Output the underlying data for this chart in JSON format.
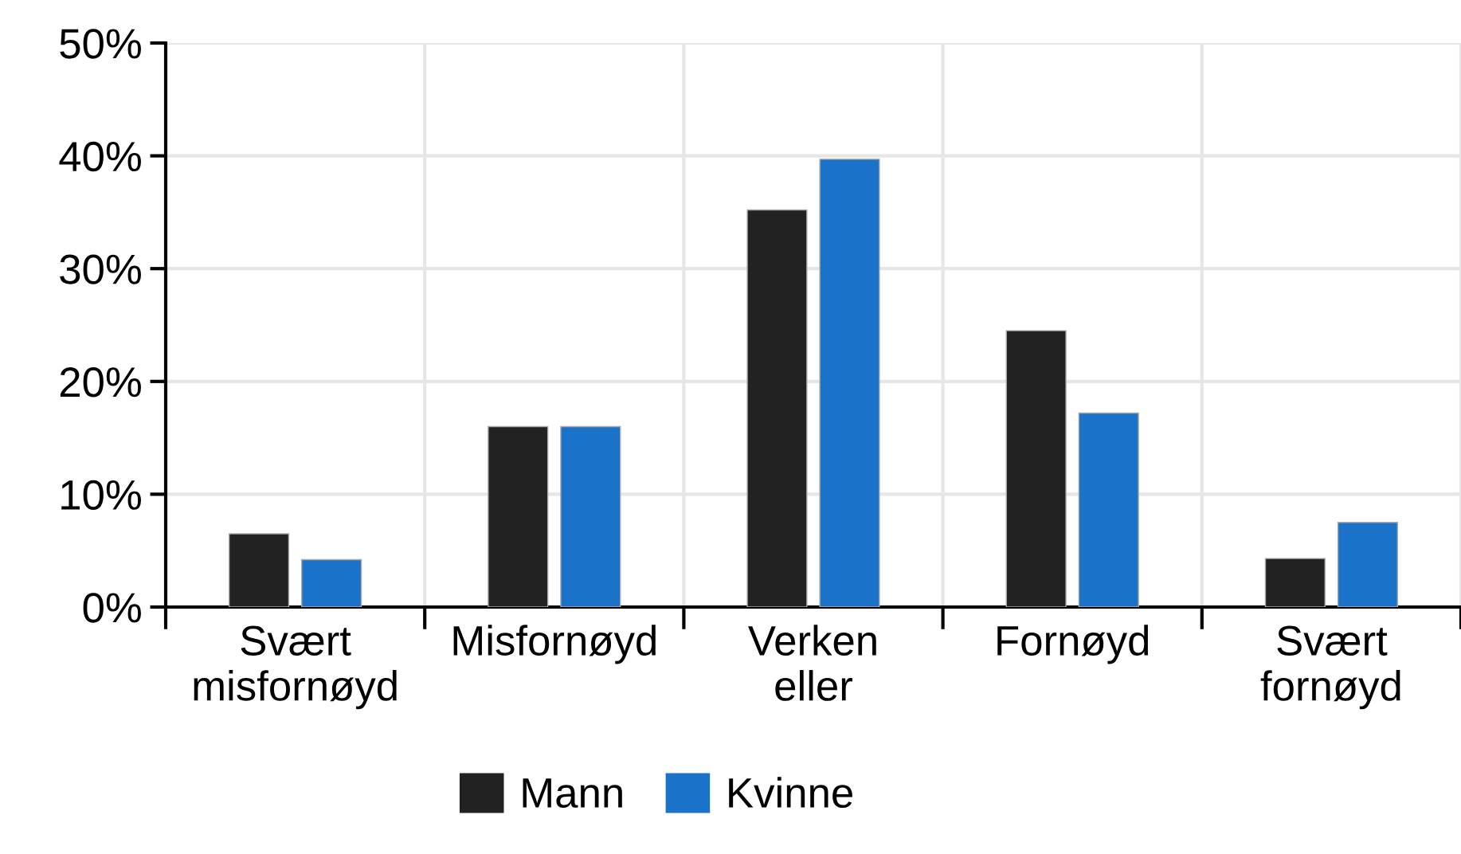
{
  "chart_data": {
    "type": "bar",
    "categories": [
      "Svært\nmisfornøyd",
      "Misfornøyd",
      "Verken\neller",
      "Fornøyd",
      "Svært\nfornøyd"
    ],
    "series": [
      {
        "name": "Mann",
        "color": "#222222",
        "values": [
          6.5,
          16.0,
          35.2,
          24.5,
          4.3
        ]
      },
      {
        "name": "Kvinne",
        "color": "#1b73c9",
        "values": [
          4.2,
          16.0,
          39.7,
          17.2,
          7.5
        ]
      }
    ],
    "ylim": [
      0,
      50
    ],
    "yticks": [
      {
        "value": 0,
        "label": "0%"
      },
      {
        "value": 10,
        "label": "10%"
      },
      {
        "value": 20,
        "label": "20%"
      },
      {
        "value": 30,
        "label": "30%"
      },
      {
        "value": 40,
        "label": "40%"
      },
      {
        "value": 50,
        "label": "50%"
      }
    ],
    "grid": true,
    "legend": "bottom"
  }
}
